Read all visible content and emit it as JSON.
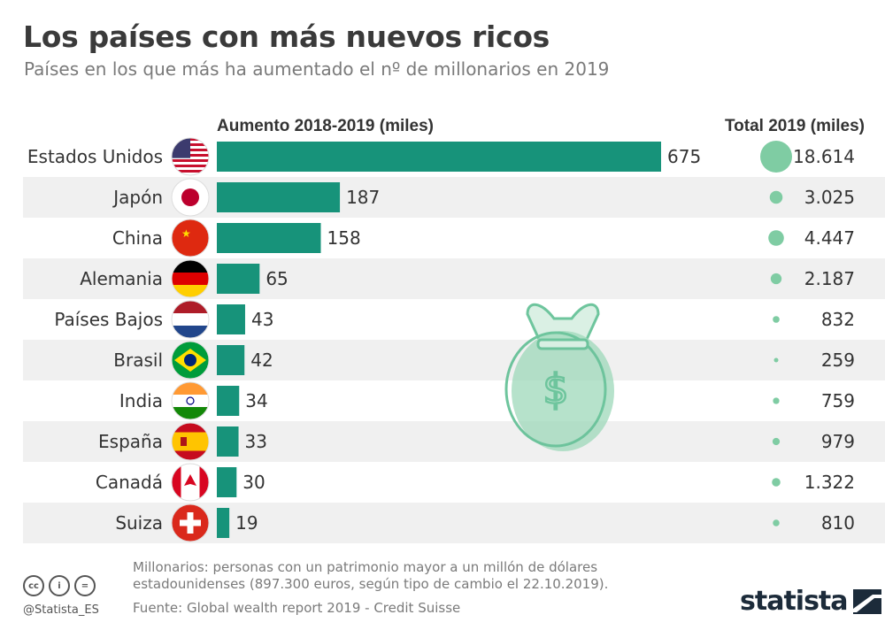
{
  "title": "Los países con más nuevos ricos",
  "subtitle": "Países en los que más ha aumentado el nº de millonarios en 2019",
  "colors": {
    "bar": "#17937a",
    "bubble": "#7fcca3",
    "row_stripe": "#f0f0f0",
    "text": "#333333"
  },
  "chart_data": {
    "type": "bar",
    "orientation": "horizontal",
    "bar_header": "Aumento 2018-2019 (miles)",
    "total_header": "Total 2019 (miles)",
    "categories": [
      "Estados Unidos",
      "Japón",
      "China",
      "Alemania",
      "Países Bajos",
      "Brasil",
      "India",
      "España",
      "Canadá",
      "Suiza"
    ],
    "values": [
      675,
      187,
      158,
      65,
      43,
      42,
      34,
      33,
      30,
      19
    ],
    "totals": [
      18614,
      3025,
      4447,
      2187,
      832,
      259,
      759,
      979,
      1322,
      810
    ],
    "totals_labels": [
      "18.614",
      "3.025",
      "4.447",
      "2.187",
      "832",
      "259",
      "759",
      "979",
      "1.322",
      "810"
    ],
    "flag_icons": [
      "us-flag-icon",
      "japan-flag-icon",
      "china-flag-icon",
      "germany-flag-icon",
      "netherlands-flag-icon",
      "brazil-flag-icon",
      "india-flag-icon",
      "spain-flag-icon",
      "canada-flag-icon",
      "switzerland-flag-icon"
    ],
    "xlim": [
      0,
      675
    ]
  },
  "footnote": {
    "line1": "Millonarios: personas con un patrimonio mayor a un millón de dólares",
    "line2": "estadounidenses (897.300 euros, según tipo de cambio el 22.10.2019)."
  },
  "source": "Fuente: Global wealth report 2019 - Credit Suisse",
  "license": {
    "cc": "cc",
    "by": "i",
    "nd": "="
  },
  "handle": "@Statista_ES",
  "brand": "statista",
  "decoration_icon": "money-bag-icon"
}
